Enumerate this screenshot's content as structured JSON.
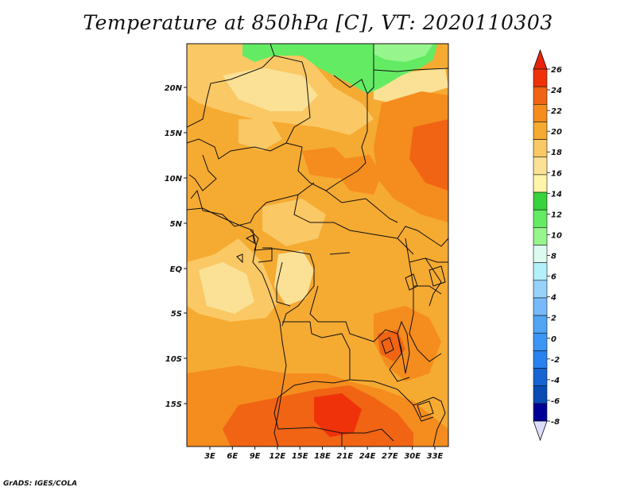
{
  "title": "Temperature at 850hPa [C], VT: 2020110303",
  "credit": "GrADS: IGES/COLA",
  "map": {
    "variable": "temperature_850hPa",
    "units": "C",
    "valid_time": "2020110303",
    "lat_labels": [
      "20N",
      "15N",
      "10N",
      "5N",
      "EQ",
      "5S",
      "10S",
      "15S"
    ],
    "lon_labels": [
      "3E",
      "6E",
      "9E",
      "12E",
      "15E",
      "18E",
      "21E",
      "24E",
      "27E",
      "30E",
      "33E"
    ],
    "region": "Central Africa"
  },
  "colorbar": {
    "labels": [
      "26",
      "24",
      "22",
      "20",
      "18",
      "16",
      "14",
      "12",
      "10",
      "8",
      "6",
      "4",
      "2",
      "0",
      "-2",
      "-4",
      "-6",
      "-8"
    ],
    "colors": [
      "#f0320a",
      "#f06414",
      "#f58c1e",
      "#f5aa32",
      "#fac864",
      "#fae196",
      "#fff5aa",
      "#37d23c",
      "#64eb64",
      "#96f58c",
      "#dcfaf0",
      "#b4f0fa",
      "#96d2fa",
      "#78b9fa",
      "#50a5f5",
      "#3c96f5",
      "#2882f0",
      "#1464d2",
      "#0a4bb4",
      "#000096"
    ],
    "top_arrow_color": "#e6230a",
    "bottom_arrow_color": "#dcdcff"
  }
}
